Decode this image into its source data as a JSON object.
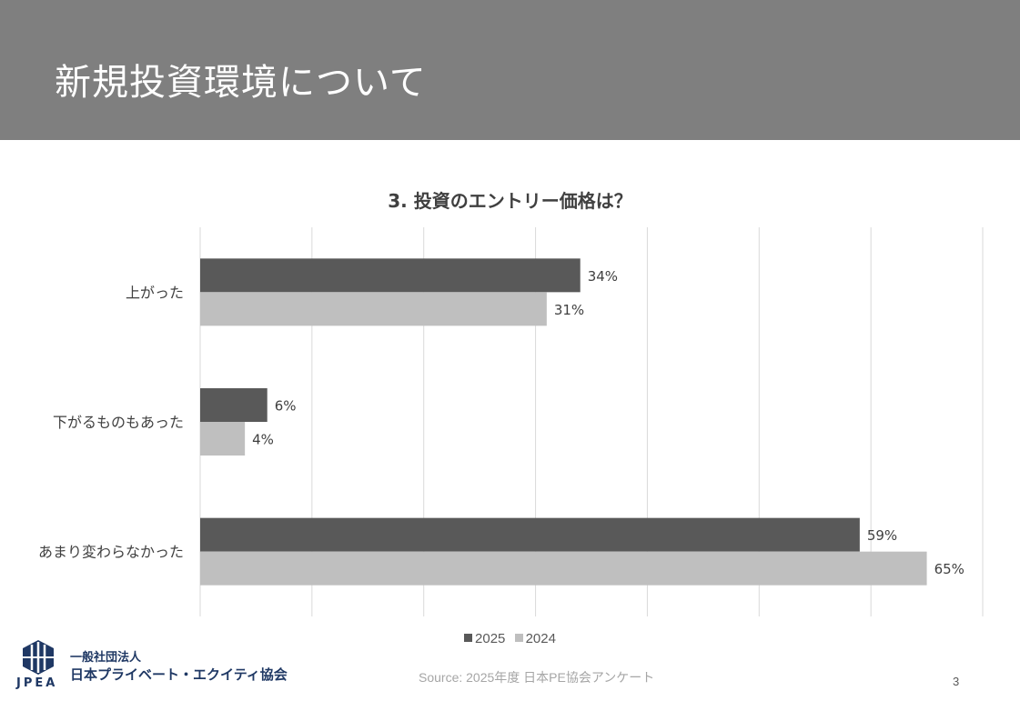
{
  "slide": {
    "title": "新規投資環境について",
    "page_number": "3",
    "source": "Source: 2025年度 日本PE協会アンケート"
  },
  "logo": {
    "letters": "JPEA",
    "line1": "一般社団法人",
    "line2": "日本プライベート・エクイティ協会"
  },
  "colors": {
    "header_bg": "#7f7f7f",
    "series_2025": "#595959",
    "series_2024": "#bfbfbf",
    "logo_blue": "#1f3864"
  },
  "chart_data": {
    "type": "bar",
    "orientation": "horizontal",
    "title": "3. 投資のエントリー価格は？",
    "categories": [
      "上がった",
      "下がるものもあった",
      "あまり変わらなかった"
    ],
    "series": [
      {
        "name": "2025",
        "values": [
          34,
          6,
          59
        ],
        "labels": [
          "34%",
          "6%",
          "59%"
        ],
        "color": "#595959"
      },
      {
        "name": "2024",
        "values": [
          31,
          4,
          65
        ],
        "labels": [
          "31%",
          "4%",
          "65%"
        ],
        "color": "#bfbfbf"
      }
    ],
    "xlim": [
      0,
      70
    ],
    "grid": true,
    "legend": "bottom"
  }
}
